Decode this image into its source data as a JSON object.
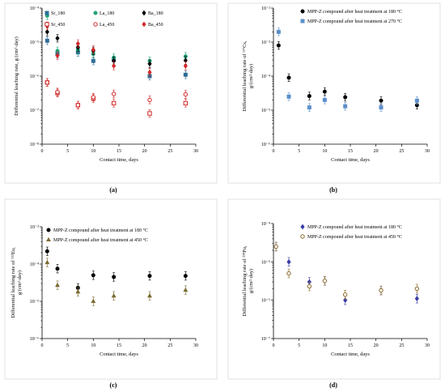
{
  "chart_data": [
    {
      "panel": "(a)",
      "type": "scatter",
      "xlabel": "Contact time, days",
      "ylabel": "Differential leaching rate, g/(cm²·day)",
      "xlim": [
        0,
        30
      ],
      "xticks": [
        "0",
        "5",
        "10",
        "15",
        "20",
        "25",
        "30"
      ],
      "ylim_log10": [
        -8,
        -4
      ],
      "yticks": [
        "10⁻⁸",
        "10⁻⁷",
        "10⁻⁶",
        "10⁻⁵",
        "10⁻⁴"
      ],
      "legend": "top, two rows",
      "series": [
        {
          "name": "Sr_180",
          "marker": "square",
          "filled": true,
          "color": "#2e6e96",
          "x": [
            1,
            3,
            7,
            10,
            14,
            21,
            28
          ],
          "y": [
            1.1e-05,
            4.5e-06,
            5e-06,
            2.8e-06,
            3e-06,
            1e-06,
            1.1e-06
          ]
        },
        {
          "name": "La_180",
          "marker": "circle",
          "filled": true,
          "color": "#1fa37a",
          "x": [
            1,
            3,
            7,
            10,
            14,
            21,
            28
          ],
          "y": [
            6e-05,
            5.5e-06,
            6e-06,
            4.5e-06,
            3.5e-06,
            2.8e-06,
            3.8e-06
          ]
        },
        {
          "name": "Ba_180",
          "marker": "diamond",
          "filled": true,
          "color": "#000000",
          "x": [
            1,
            3,
            7,
            10,
            14,
            21,
            28
          ],
          "y": [
            2e-05,
            1.3e-05,
            7e-06,
            5.5e-06,
            2.8e-06,
            2.3e-06,
            2.9e-06
          ]
        },
        {
          "name": "Sr_450",
          "marker": "square",
          "filled": false,
          "color": "#d22828",
          "x": [
            1,
            3,
            7,
            10,
            14,
            21,
            28
          ],
          "y": [
            6.5e-07,
            3.2e-07,
            1.4e-07,
            2.2e-07,
            1.6e-07,
            8e-08,
            1.6e-07
          ]
        },
        {
          "name": "La_450",
          "marker": "circle",
          "filled": false,
          "color": "#d22828",
          "x": [
            1,
            3,
            7,
            10,
            14,
            21,
            28
          ],
          "y": [
            6.5e-07,
            3.4e-07,
            1.4e-07,
            2.4e-07,
            3e-07,
            2e-07,
            2.9e-07
          ]
        },
        {
          "name": "Ba_450",
          "marker": "diamond",
          "filled": true,
          "color": "#d22828",
          "x": [
            1,
            3,
            7,
            10,
            14,
            21,
            28
          ],
          "y": [
            3e-05,
            4e-06,
            9e-06,
            6e-06,
            2e-06,
            1.3e-06,
            2e-06
          ]
        }
      ]
    },
    {
      "panel": "(b)",
      "type": "scatter",
      "xlabel": "Contact time, days",
      "ylabel_line1": "Differential leaching rate of ¹³⁷Cs,",
      "ylabel_line2": "g/(cm²·day)",
      "xlim": [
        0,
        30
      ],
      "xticks": [
        "0",
        "5",
        "10",
        "15",
        "20",
        "25",
        "30"
      ],
      "ylim_log10": [
        -6,
        -2
      ],
      "yticks": [
        "10⁻⁶",
        "10⁻⁵",
        "10⁻⁴",
        "10⁻³",
        "10⁻²"
      ],
      "legend": "top-right",
      "series": [
        {
          "name": "MPP-Z compound after heat treatment at 180 °C",
          "marker": "circle",
          "filled": true,
          "color": "#000000",
          "x": [
            1,
            3,
            7,
            10,
            14,
            21,
            28
          ],
          "y": [
            0.0008,
            9e-05,
            2.6e-05,
            3.5e-05,
            2.4e-05,
            1.9e-05,
            1.4e-05
          ]
        },
        {
          "name": "MPP-Z compound after heat treatment at 270 °C",
          "marker": "square",
          "filled": true,
          "color": "#5b8fc9",
          "x": [
            1,
            3,
            7,
            10,
            14,
            21,
            28
          ],
          "y": [
            0.002,
            2.5e-05,
            1.2e-05,
            2e-05,
            1.3e-05,
            1.2e-05,
            1.9e-05
          ]
        }
      ]
    },
    {
      "panel": "(c)",
      "type": "scatter",
      "xlabel": "Contact time, days",
      "ylabel_line1": "Differential leaching rate of ¹⁵²Eu,",
      "ylabel_line2": "g/(cm²·day)",
      "xlim": [
        0,
        30
      ],
      "xticks": [
        "0",
        "5",
        "10",
        "15",
        "20",
        "25",
        "30"
      ],
      "ylim_log10": [
        -6,
        -3
      ],
      "yticks": [
        "10⁻⁶",
        "10⁻⁵",
        "10⁻⁴",
        "10⁻³"
      ],
      "legend": "top-left",
      "series": [
        {
          "name": "MPP-Z compound after heat treatment at 180 °C",
          "marker": "circle",
          "filled": true,
          "color": "#000000",
          "x": [
            1,
            3,
            7,
            10,
            14,
            21,
            28
          ],
          "y": [
            0.00022,
            7.5e-05,
            2.3e-05,
            5e-05,
            4.5e-05,
            4.8e-05,
            4.8e-05
          ]
        },
        {
          "name": "MPP-Z compound after heat treatment at 450 °C",
          "marker": "triangle",
          "filled": true,
          "color": "#7a6a2e",
          "x": [
            1,
            3,
            7,
            10,
            14,
            21,
            28
          ],
          "y": [
            0.00011,
            2.7e-05,
            1.8e-05,
            1e-05,
            1.4e-05,
            1.4e-05,
            2e-05
          ]
        }
      ]
    },
    {
      "panel": "(d)",
      "type": "scatter",
      "xlabel": "Contact time, days",
      "ylabel_line1": "Differential leaching rate of ²³⁹Pu,",
      "ylabel_line2": "g/(cm²·day)",
      "xlim": [
        0,
        30
      ],
      "xticks": [
        "0",
        "5",
        "10",
        "15",
        "20",
        "25",
        "30"
      ],
      "ylim_log10": [
        -7,
        -4
      ],
      "yticks": [
        "10⁻⁷",
        "10⁻⁶",
        "10⁻⁵",
        "10⁻⁴"
      ],
      "legend": "top-right",
      "series": [
        {
          "name": "MPP-Z compound after heat treatment at 180 °C",
          "marker": "diamond",
          "filled": true,
          "color": "#3b3ba8",
          "x": [
            0.5,
            3,
            7,
            10,
            14,
            21,
            28
          ],
          "y": [
            2.5e-05,
            1e-05,
            3e-06,
            3.2e-06,
            1e-06,
            1.8e-06,
            1.1e-06
          ]
        },
        {
          "name": "MPP-Z compound after heat treatment at 450 °C",
          "marker": "circle",
          "filled": false,
          "color": "#8a6a2a",
          "x": [
            0.5,
            3,
            7,
            10,
            14,
            21,
            28
          ],
          "y": [
            2.5e-05,
            5e-06,
            2.3e-06,
            3.2e-06,
            1.4e-06,
            1.8e-06,
            2e-06
          ]
        }
      ]
    }
  ]
}
